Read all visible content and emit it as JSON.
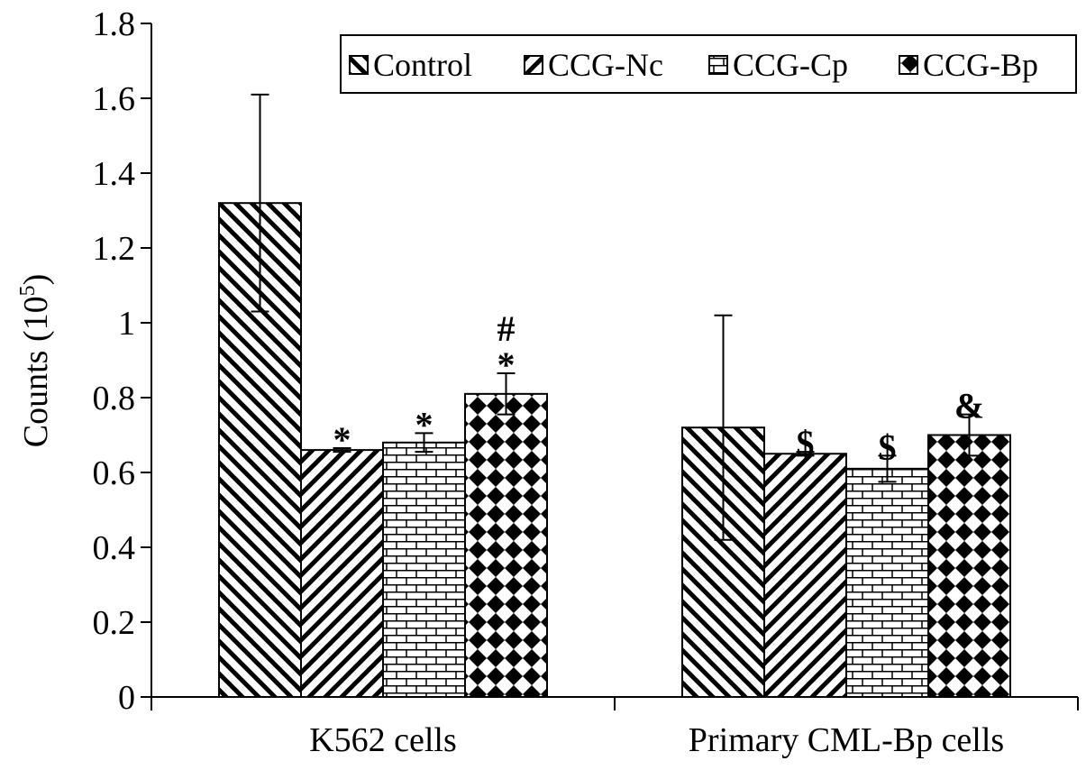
{
  "chart_data": {
    "type": "bar",
    "title": "",
    "xlabel": "",
    "ylabel": "Counts (10",
    "ylabel_sup": "5",
    "ylabel_close": ")",
    "ylim": [
      0,
      1.8
    ],
    "yticks": [
      0,
      0.2,
      0.4,
      0.6,
      0.8,
      1,
      1.2,
      1.4,
      1.6,
      1.8
    ],
    "ytick_labels": [
      "0",
      "0.2",
      "0.4",
      "0.6",
      "0.8",
      "1",
      "1.2",
      "1.4",
      "1.6",
      "1.8"
    ],
    "categories": [
      "K562 cells",
      "Primary CML-Bp cells"
    ],
    "series": [
      {
        "name": "Control",
        "pattern": "diag-back",
        "values": [
          1.32,
          0.72
        ],
        "errors": [
          0.29,
          0.3
        ],
        "annotations": [
          "",
          ""
        ]
      },
      {
        "name": "CCG-Nc",
        "pattern": "diag-fwd",
        "values": [
          0.66,
          0.65
        ],
        "errors": [
          0.005,
          0.005
        ],
        "annotations": [
          "*",
          "$"
        ]
      },
      {
        "name": "CCG-Cp",
        "pattern": "brick",
        "values": [
          0.68,
          0.61
        ],
        "errors": [
          0.025,
          0.035
        ],
        "annotations": [
          "*",
          "$"
        ]
      },
      {
        "name": "CCG-Bp",
        "pattern": "diamond",
        "values": [
          0.81,
          0.7
        ],
        "errors": [
          0.055,
          0.055
        ],
        "annotations": [
          "#\n*",
          "&"
        ]
      }
    ],
    "legend": {
      "position": "top-right",
      "border": true
    },
    "grid": false,
    "colors": {
      "bar_fill": "#ffffff",
      "ink": "#000000"
    }
  }
}
